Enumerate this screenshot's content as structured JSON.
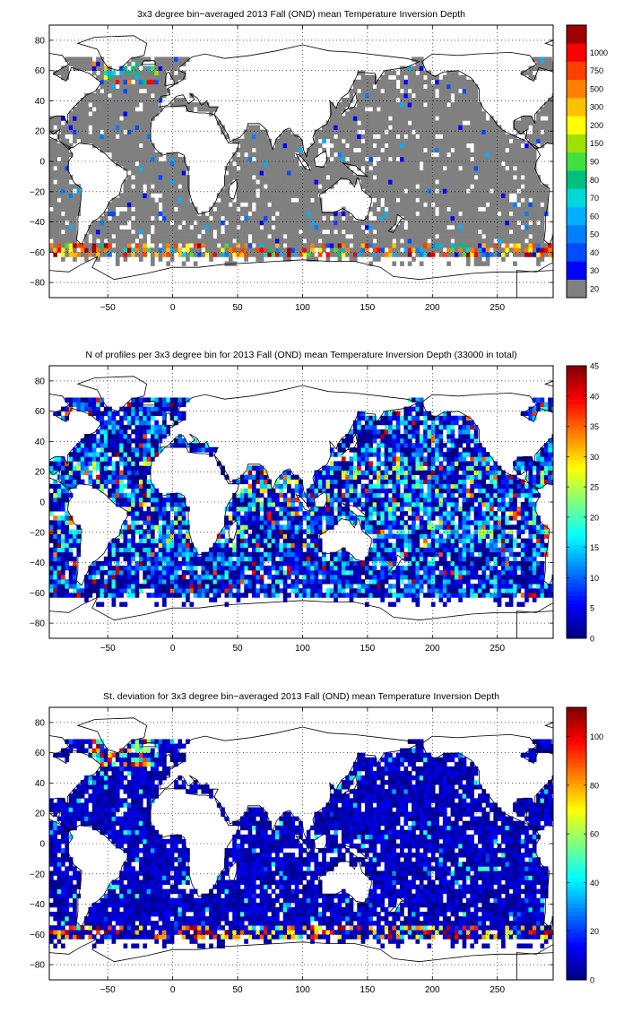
{
  "chart_data": [
    {
      "type": "heatmap",
      "title": "3x3 degree bin−averaged 2013 Fall (OND) mean Temperature Inversion Depth",
      "xlabel": "",
      "ylabel": "",
      "xlim": [
        -95,
        293
      ],
      "ylim": [
        -90,
        90
      ],
      "xticks": [
        -50,
        0,
        50,
        100,
        150,
        200,
        250
      ],
      "yticks": [
        80,
        60,
        40,
        20,
        0,
        -20,
        -40,
        -60,
        -80
      ],
      "xtick_labels": [
        "−50",
        "0",
        "50",
        "100",
        "150",
        "200",
        "250"
      ],
      "ytick_labels": [
        "80",
        "60",
        "40",
        "20",
        "0",
        "−20",
        "−40",
        "−60",
        "−80"
      ],
      "grid": true,
      "grid_style": "dotted",
      "colorbar": {
        "scale": "categorical",
        "tick_labels": [
          "20",
          "30",
          "40",
          "50",
          "60",
          "70",
          "80",
          "90",
          "150",
          "200",
          "300",
          "500",
          "750",
          "1000"
        ],
        "colors": [
          "#808080",
          "#0000ff",
          "#004cff",
          "#0080ff",
          "#00b0ff",
          "#00d8d8",
          "#00c080",
          "#40e040",
          "#a0e000",
          "#ffff00",
          "#ffc000",
          "#ff8000",
          "#ff4000",
          "#ff0000",
          "#a00000"
        ]
      },
      "dominant_value_class": "20",
      "cell_size_deg": 3
    },
    {
      "type": "heatmap",
      "title": "N of profiles per 3x3 degree bin for 2013 Fall (OND) mean Temperature Inversion Depth  (33000 in total)",
      "xlabel": "",
      "ylabel": "",
      "xlim": [
        -95,
        293
      ],
      "ylim": [
        -90,
        90
      ],
      "xticks": [
        -50,
        0,
        50,
        100,
        150,
        200,
        250
      ],
      "yticks": [
        80,
        60,
        40,
        20,
        0,
        -20,
        -40,
        -60,
        -80
      ],
      "xtick_labels": [
        "−50",
        "0",
        "50",
        "100",
        "150",
        "200",
        "250"
      ],
      "ytick_labels": [
        "80",
        "60",
        "40",
        "20",
        "0",
        "−20",
        "−40",
        "−60",
        "−80"
      ],
      "grid": true,
      "grid_style": "dotted",
      "colorbar": {
        "scale": "linear",
        "min": 0,
        "max": 45,
        "tick_values": [
          0,
          5,
          10,
          15,
          20,
          25,
          30,
          35,
          40,
          45
        ],
        "tick_labels": [
          "0",
          "5",
          "10",
          "15",
          "20",
          "25",
          "30",
          "35",
          "40",
          "45"
        ],
        "colormap": "jet"
      },
      "cell_size_deg": 3
    },
    {
      "type": "heatmap",
      "title": "St. deviation for 3x3 degree bin−averaged 2013 Fall (OND) mean Temperature Inversion Depth",
      "xlabel": "",
      "ylabel": "",
      "xlim": [
        -95,
        293
      ],
      "ylim": [
        -90,
        90
      ],
      "xticks": [
        -50,
        0,
        50,
        100,
        150,
        200,
        250
      ],
      "yticks": [
        80,
        60,
        40,
        20,
        0,
        -20,
        -40,
        -60,
        -80
      ],
      "xtick_labels": [
        "−50",
        "0",
        "50",
        "100",
        "150",
        "200",
        "250"
      ],
      "ytick_labels": [
        "80",
        "60",
        "40",
        "20",
        "0",
        "−20",
        "−40",
        "−60",
        "−80"
      ],
      "grid": true,
      "grid_style": "dotted",
      "colorbar": {
        "scale": "linear",
        "min": 0,
        "max": 112,
        "tick_values": [
          0,
          20,
          40,
          60,
          80,
          100
        ],
        "tick_labels": [
          "0",
          "20",
          "40",
          "60",
          "80",
          "100"
        ],
        "colormap": "jet"
      },
      "cell_size_deg": 3
    }
  ]
}
